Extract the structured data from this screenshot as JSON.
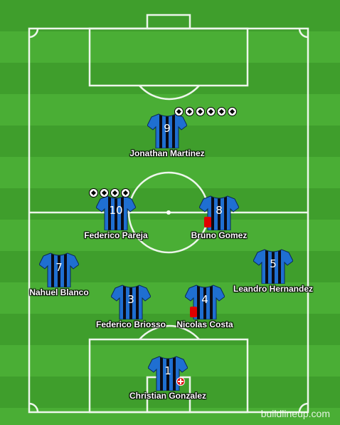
{
  "colors": {
    "pitch_dark": "#3f9e2c",
    "pitch_light": "#4aae35",
    "shirt_blue": "#1f6fd1",
    "shirt_black": "#0b0b14"
  },
  "players": [
    {
      "number": "9",
      "name": "Jonathan Martinez",
      "goals": 6,
      "red_card": false,
      "injury": false
    },
    {
      "number": "10",
      "name": "Federico Pareja",
      "goals": 4,
      "red_card": false,
      "injury": false
    },
    {
      "number": "8",
      "name": "Bruno Gomez",
      "goals": 0,
      "red_card": true,
      "injury": false
    },
    {
      "number": "7",
      "name": "Nahuel Blanco",
      "goals": 0,
      "red_card": false,
      "injury": false
    },
    {
      "number": "5",
      "name": "Leandro Hernandez",
      "goals": 0,
      "red_card": false,
      "injury": false
    },
    {
      "number": "3",
      "name": "Federico Briosso",
      "goals": 0,
      "red_card": false,
      "injury": false
    },
    {
      "number": "4",
      "name": "Nicolas Costa",
      "goals": 0,
      "red_card": true,
      "injury": false
    },
    {
      "number": "1",
      "name": "Christian Gonzalez",
      "goals": 0,
      "red_card": false,
      "injury": true
    }
  ],
  "watermark": "buildlineup.com"
}
